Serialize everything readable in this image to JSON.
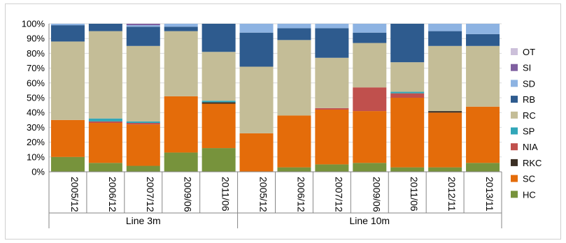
{
  "chart_data": {
    "type": "bar",
    "stacked": true,
    "title": "",
    "xlabel": "",
    "ylabel": "",
    "ylim": [
      0,
      100
    ],
    "y_ticks": [
      "0%",
      "10%",
      "20%",
      "30%",
      "40%",
      "50%",
      "60%",
      "70%",
      "80%",
      "90%",
      "100%"
    ],
    "grid": true,
    "legend_position": "right",
    "groups": [
      {
        "label": "Line 3m",
        "categories": [
          "2005/12",
          "2006/12",
          "2007/12",
          "2009/06",
          "2011/06"
        ]
      },
      {
        "label": "Line 10m",
        "categories": [
          "2005/12",
          "2006/12",
          "2007/12",
          "2009/06",
          "2011/06",
          "2012/11",
          "2013/11"
        ]
      }
    ],
    "categories": [
      "2005/12",
      "2006/12",
      "2007/12",
      "2009/06",
      "2011/06",
      "2005/12",
      "2006/12",
      "2007/12",
      "2009/06",
      "2011/06",
      "2012/11",
      "2013/11"
    ],
    "series": [
      {
        "name": "HC",
        "color": "#77933c",
        "values": [
          10,
          6,
          4,
          13,
          16,
          0,
          3,
          5,
          6,
          3,
          3,
          6
        ]
      },
      {
        "name": "SC",
        "color": "#e46c0a",
        "values": [
          25,
          27,
          28,
          38,
          30,
          26,
          35,
          37,
          35,
          47,
          37,
          38
        ]
      },
      {
        "name": "RKC",
        "color": "#3b2f24",
        "values": [
          0,
          0,
          0,
          0,
          1,
          0,
          0,
          0,
          0,
          0,
          1,
          0
        ]
      },
      {
        "name": "NIA",
        "color": "#c0504d",
        "values": [
          0,
          1,
          1,
          0,
          0,
          0,
          0,
          1,
          16,
          3,
          0,
          0
        ]
      },
      {
        "name": "SP",
        "color": "#31a6b8",
        "values": [
          0,
          2,
          1,
          0,
          1,
          0,
          0,
          0,
          0,
          1,
          0,
          0
        ]
      },
      {
        "name": "RC",
        "color": "#c4bd97",
        "values": [
          53,
          59,
          51,
          44,
          33,
          45,
          51,
          34,
          30,
          20,
          44,
          41
        ]
      },
      {
        "name": "RB",
        "color": "#2e5b8e",
        "values": [
          11,
          5,
          13,
          3,
          19,
          23,
          8,
          20,
          7,
          26,
          10,
          8
        ]
      },
      {
        "name": "SD",
        "color": "#8db3e2",
        "values": [
          1,
          0,
          1,
          2,
          0,
          6,
          3,
          3,
          6,
          0,
          5,
          7
        ]
      },
      {
        "name": "SI",
        "color": "#7f5fa0",
        "values": [
          0,
          0,
          1,
          0,
          0,
          0,
          0,
          0,
          0,
          0,
          0,
          0
        ]
      },
      {
        "name": "OT",
        "color": "#ccc0da",
        "values": [
          0,
          0,
          0,
          0,
          0,
          0,
          0,
          0,
          0,
          0,
          0,
          0
        ]
      }
    ],
    "legend_order": [
      "OT",
      "SI",
      "SD",
      "RB",
      "RC",
      "SP",
      "NIA",
      "RKC",
      "SC",
      "HC"
    ]
  }
}
